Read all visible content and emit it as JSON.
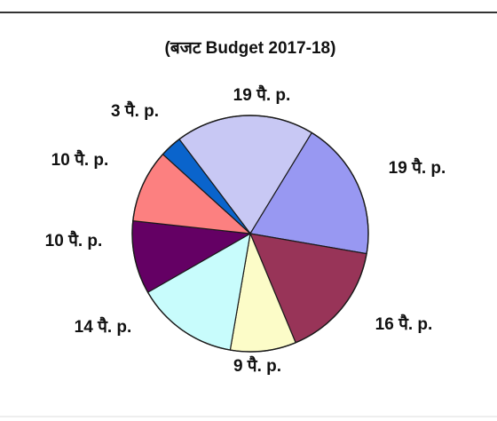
{
  "chart_data": {
    "type": "pie",
    "title": "(बजट Budget 2017-18)",
    "start_angle_deg": -127,
    "direction": "clockwise",
    "slices": [
      {
        "label": "19 पै. p.",
        "value": 19,
        "color": "#c8c8f4"
      },
      {
        "label": "19 पै. p.",
        "value": 19,
        "color": "#9898f2"
      },
      {
        "label": "16 पै. p.",
        "value": 16,
        "color": "#983458"
      },
      {
        "label": "9 पै. p.",
        "value": 9,
        "color": "#fcfcc8"
      },
      {
        "label": "14 पै. p.",
        "value": 14,
        "color": "#c8fcfc"
      },
      {
        "label": "10 पै. p.",
        "value": 10,
        "color": "#640064"
      },
      {
        "label": "10 पै. p.",
        "value": 10,
        "color": "#fc8080"
      },
      {
        "label": "3 पै. p.",
        "value": 3,
        "color": "#0a64cc"
      }
    ]
  }
}
